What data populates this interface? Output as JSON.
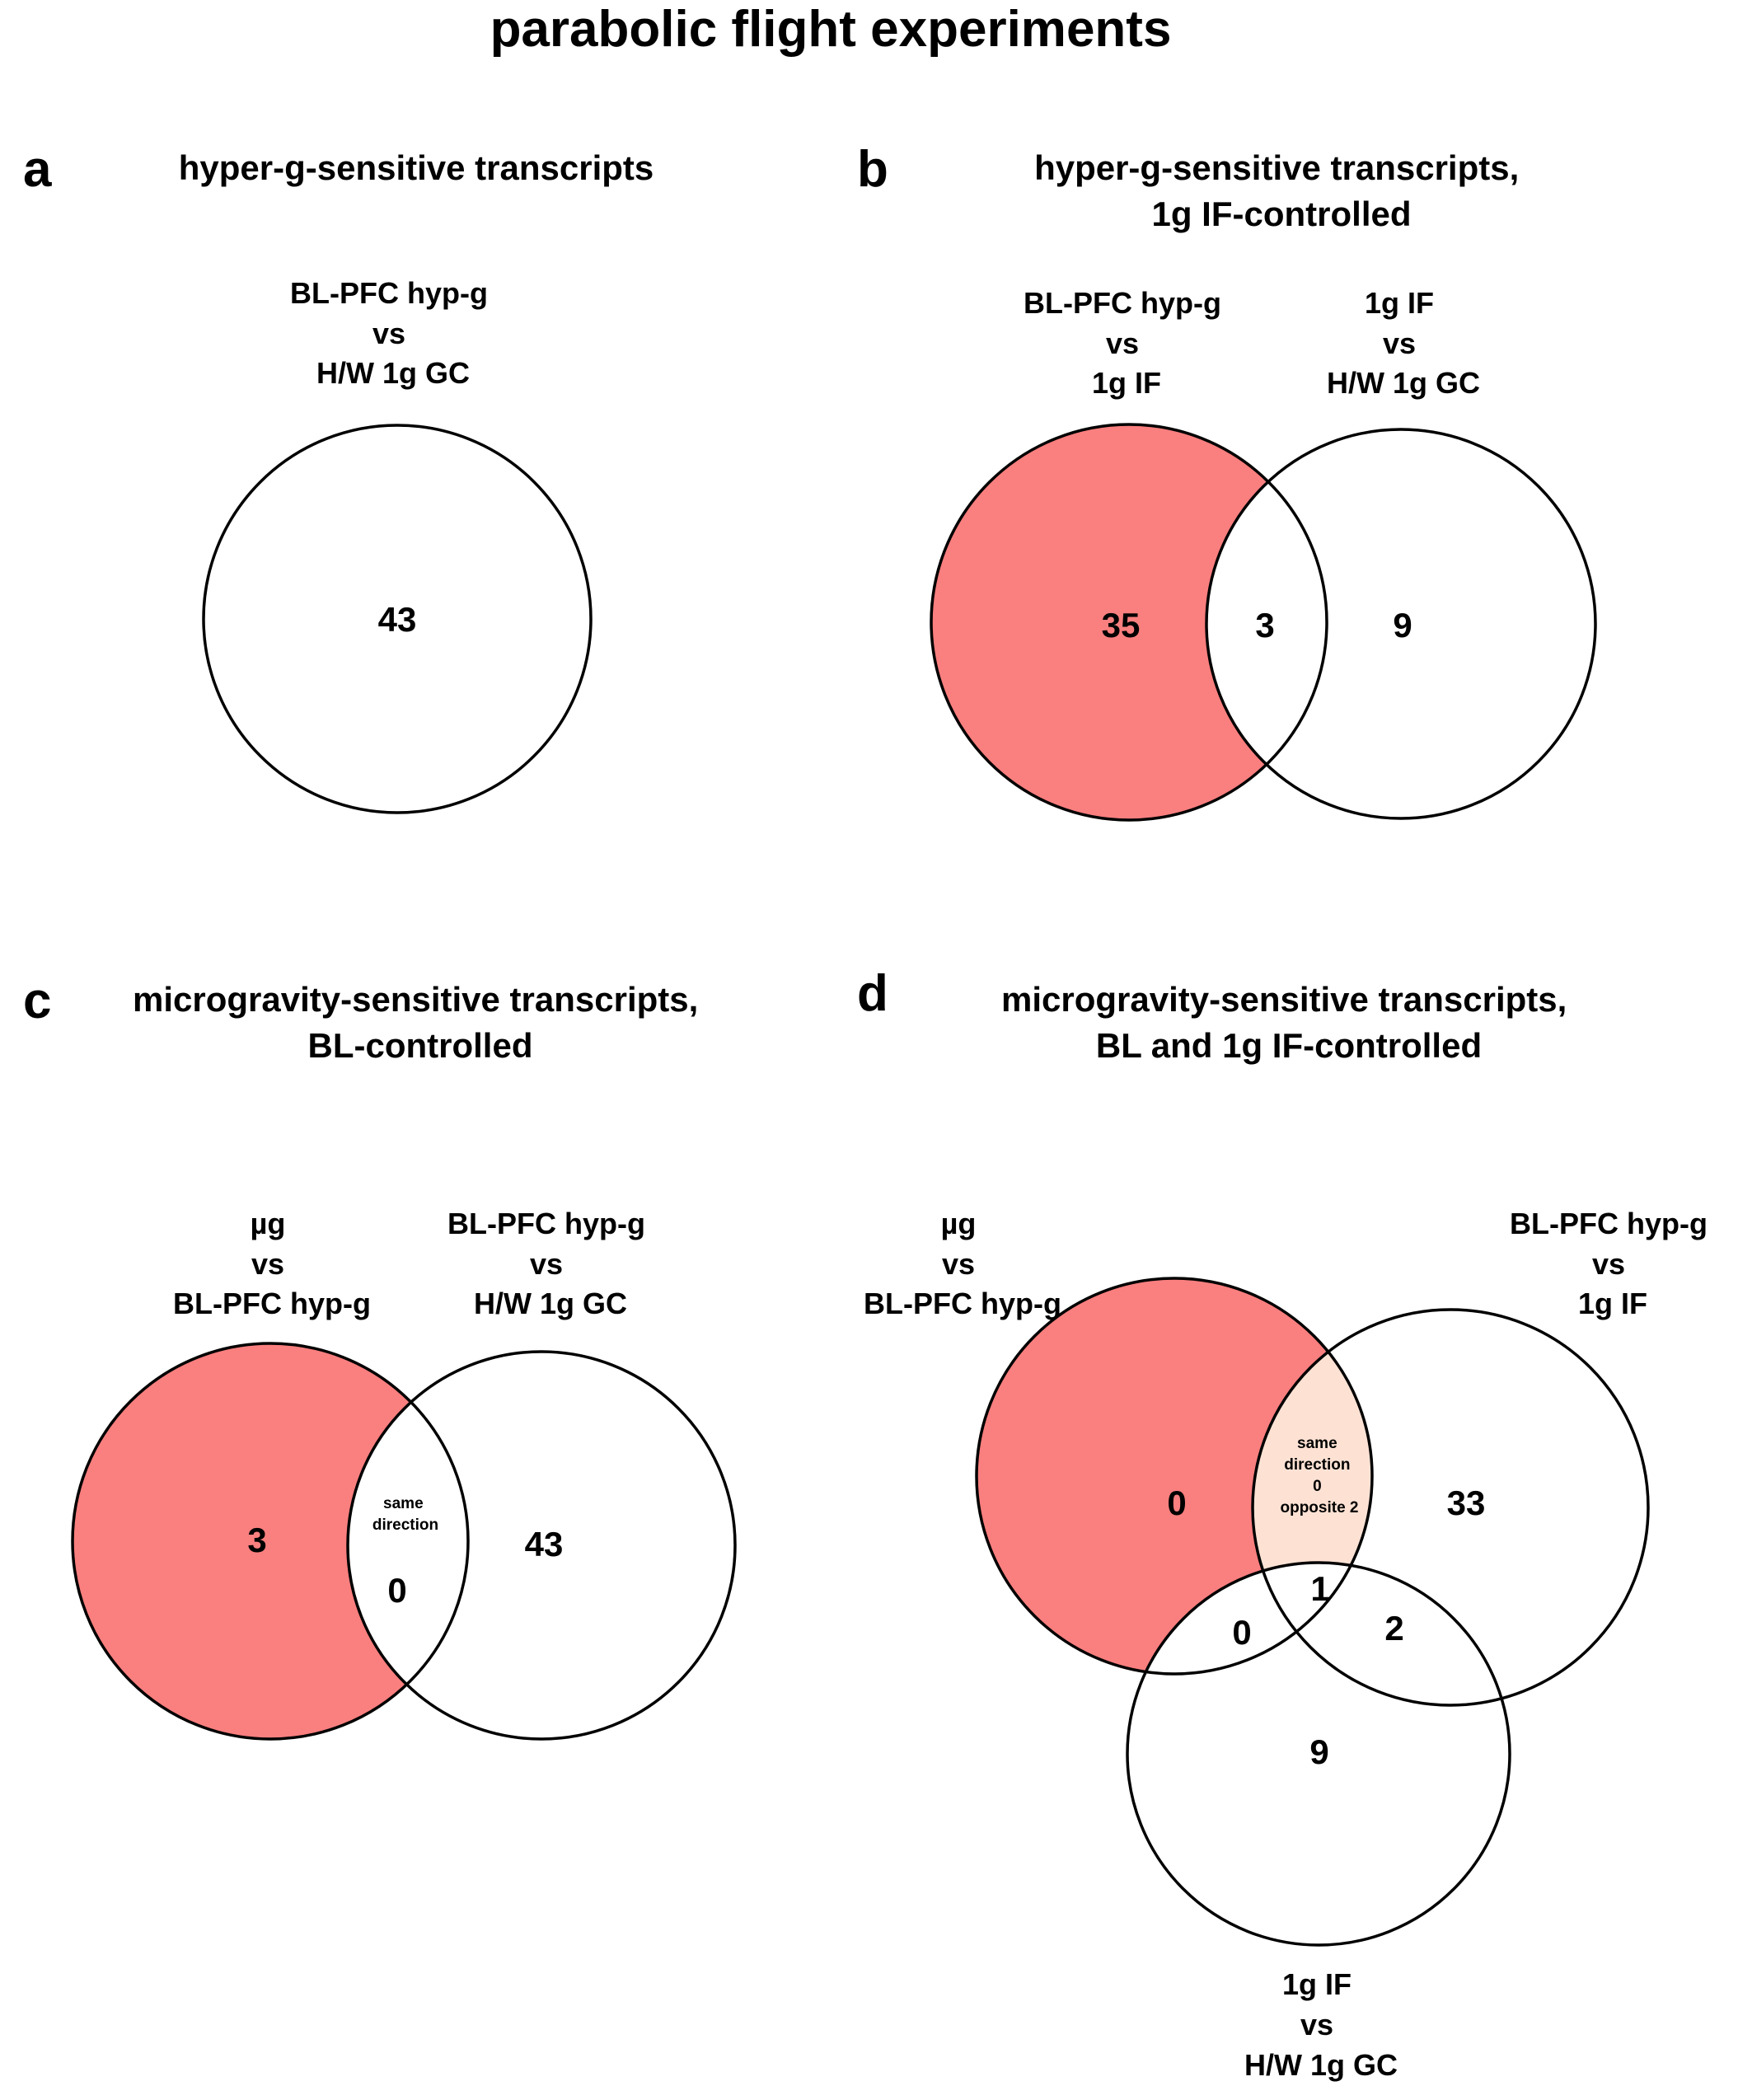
{
  "title": "parabolic flight experiments",
  "colors": {
    "highlight": "#fa7f7f",
    "intersection_light": "#fde2d4",
    "outline": "#000000",
    "background": "#ffffff"
  },
  "panels": {
    "a": {
      "label": "a",
      "title": [
        "hyper-g-sensitive transcripts"
      ],
      "sets": [
        {
          "name": [
            "BL-PFC hyp-g",
            "vs",
            "H/W 1g GC"
          ]
        }
      ],
      "counts": {
        "only": "43"
      }
    },
    "b": {
      "label": "b",
      "title": [
        "hyper-g-sensitive transcripts,",
        "1g IF-controlled"
      ],
      "sets": [
        {
          "name": [
            "BL-PFC hyp-g",
            "vs",
            "1g IF"
          ]
        },
        {
          "name": [
            "1g IF",
            "vs",
            "H/W 1g GC"
          ]
        }
      ],
      "counts": {
        "left_only": "35",
        "overlap": "3",
        "right_only": "9"
      }
    },
    "c": {
      "label": "c",
      "title": [
        "microgravity-sensitive transcripts,",
        "BL-controlled"
      ],
      "sets": [
        {
          "name": [
            "µg",
            "vs",
            "BL-PFC hyp-g"
          ]
        },
        {
          "name": [
            "BL-PFC hyp-g",
            "vs",
            "H/W 1g GC"
          ]
        }
      ],
      "counts": {
        "left_only": "3",
        "overlap": "0",
        "right_only": "43"
      },
      "overlap_note": [
        "same",
        "direction"
      ]
    },
    "d": {
      "label": "d",
      "title": [
        "microgravity-sensitive transcripts,",
        "BL and 1g IF-controlled"
      ],
      "sets": [
        {
          "name": [
            "µg",
            "vs",
            "BL-PFC hyp-g"
          ]
        },
        {
          "name": [
            "BL-PFC hyp-g",
            "vs",
            "1g IF"
          ]
        },
        {
          "name": [
            "1g IF",
            "vs",
            "H/W 1g GC"
          ]
        }
      ],
      "counts": {
        "left_only": "0",
        "right_only": "33",
        "bottom_only": "9",
        "left_right_note": [
          "same",
          "direction",
          "0",
          "opposite 2"
        ],
        "left_bottom": "0",
        "right_bottom": "2",
        "all_three": "1"
      }
    }
  }
}
